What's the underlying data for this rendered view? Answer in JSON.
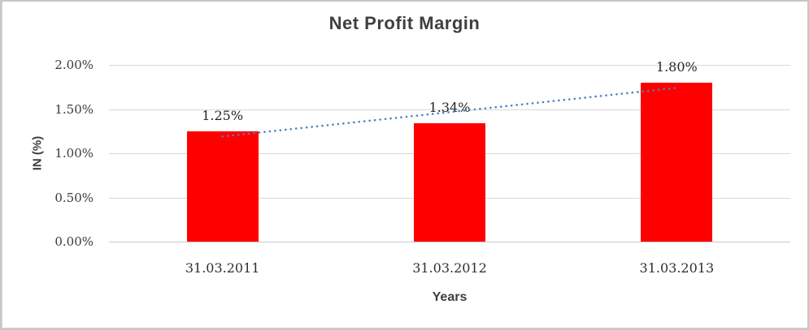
{
  "chart_data": {
    "type": "bar",
    "title": "Net Profit Margin",
    "xlabel": "Years",
    "ylabel": "IN (%)",
    "categories": [
      "31.03.2011",
      "31.03.2012",
      "31.03.2013"
    ],
    "series": [
      {
        "name": "Net Profit Margin",
        "values": [
          1.25,
          1.34,
          1.8
        ]
      }
    ],
    "data_labels": [
      "1.25%",
      "1.34%",
      "1.80%"
    ],
    "y_ticks": [
      {
        "label": "0.00%",
        "value": 0.0
      },
      {
        "label": "0.50%",
        "value": 0.5
      },
      {
        "label": "1.00%",
        "value": 1.0
      },
      {
        "label": "1.50%",
        "value": 1.5
      },
      {
        "label": "2.00%",
        "value": 2.0
      }
    ],
    "ylim": [
      0,
      2
    ],
    "grid": true,
    "legend": "none",
    "bar_color": "#ff0000",
    "grid_color": "#d9d9d9",
    "title_color": "#3f3f3f",
    "trendline": {
      "type": "linear",
      "style": "dotted",
      "color": "#4f81bd",
      "start_value": 1.19,
      "end_value": 1.74
    }
  }
}
